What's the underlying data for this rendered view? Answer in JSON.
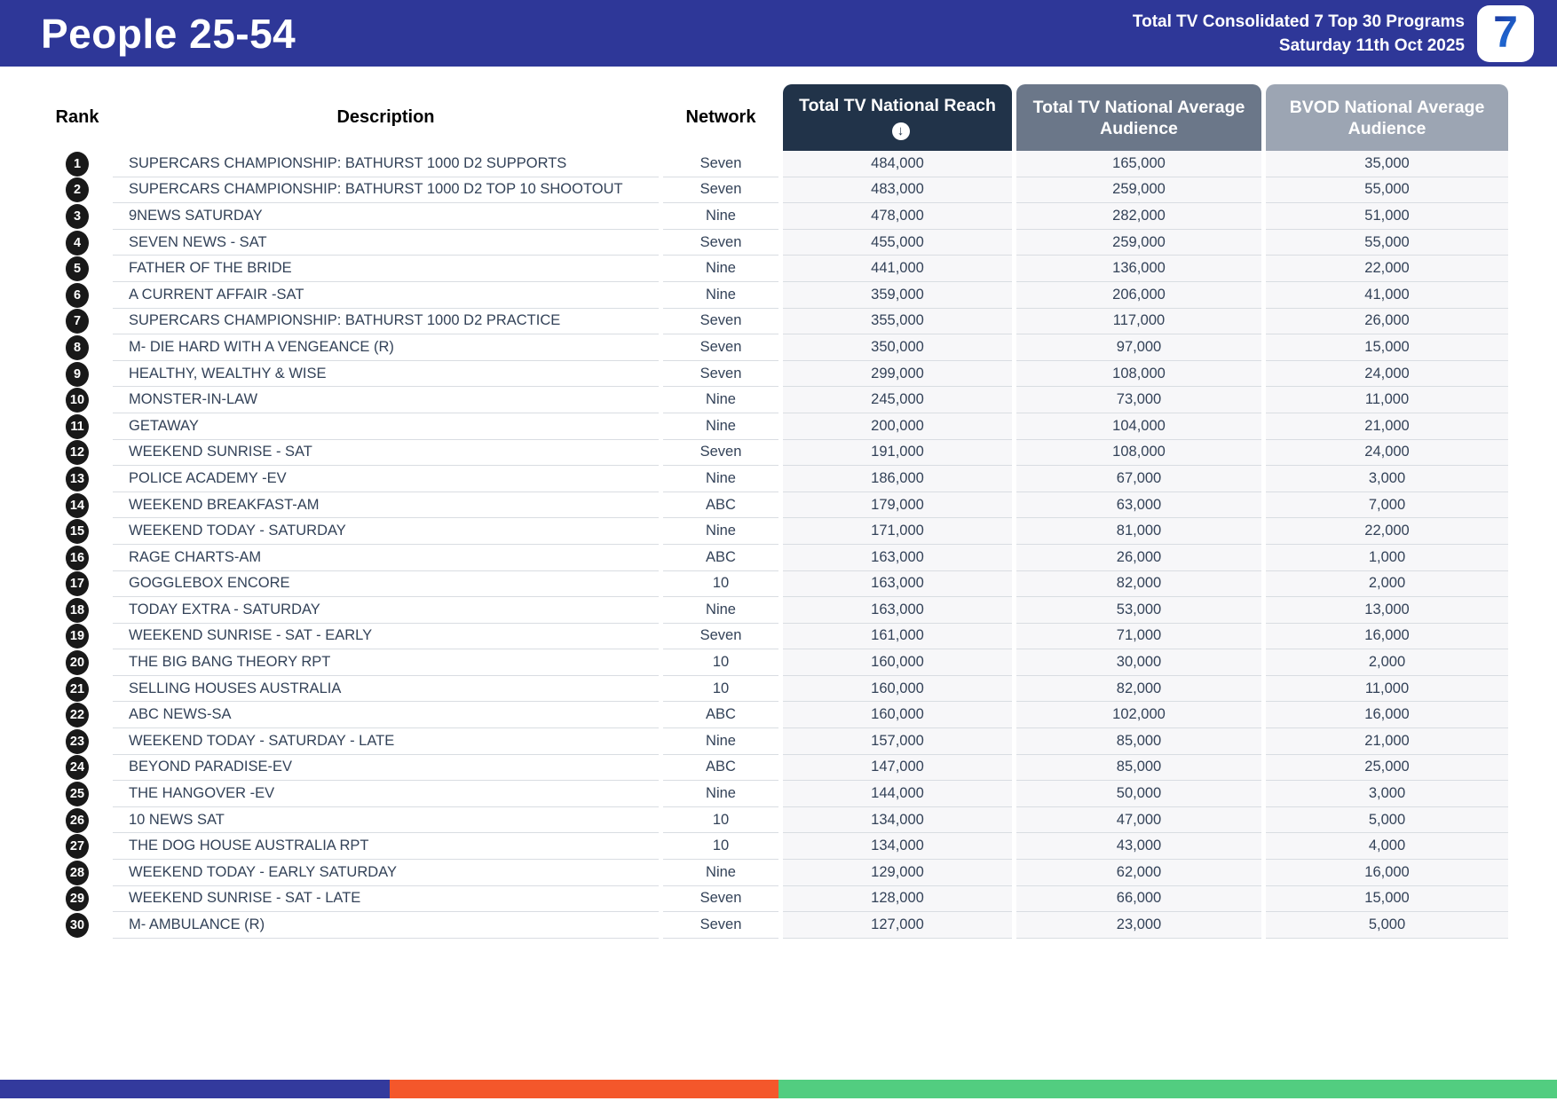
{
  "banner": {
    "title": "People 25-54",
    "subtitle_line1": "Total TV Consolidated 7 Top 30 Programs",
    "subtitle_line2": "Saturday 11th Oct 2025",
    "logo_text": "7",
    "bg_color": "#2e3798"
  },
  "table": {
    "columns": {
      "rank": "Rank",
      "description": "Description",
      "network": "Network",
      "reach": "Total TV National Reach",
      "avg": "Total TV National Average Audience",
      "bvod": "BVOD National Average Audience"
    },
    "sort_icon": "↓",
    "header_colors": {
      "reach": "#213349",
      "avg": "#6b7789",
      "bvod": "#9ca5b3"
    },
    "rows": [
      {
        "rank": "1",
        "description": "SUPERCARS CHAMPIONSHIP: BATHURST 1000 D2 SUPPORTS",
        "network": "Seven",
        "reach": "484,000",
        "avg": "165,000",
        "bvod": "35,000"
      },
      {
        "rank": "2",
        "description": "SUPERCARS CHAMPIONSHIP: BATHURST 1000 D2 TOP 10 SHOOTOUT",
        "network": "Seven",
        "reach": "483,000",
        "avg": "259,000",
        "bvod": "55,000"
      },
      {
        "rank": "3",
        "description": "9NEWS SATURDAY",
        "network": "Nine",
        "reach": "478,000",
        "avg": "282,000",
        "bvod": "51,000"
      },
      {
        "rank": "4",
        "description": "SEVEN NEWS - SAT",
        "network": "Seven",
        "reach": "455,000",
        "avg": "259,000",
        "bvod": "55,000"
      },
      {
        "rank": "5",
        "description": "FATHER OF THE BRIDE",
        "network": "Nine",
        "reach": "441,000",
        "avg": "136,000",
        "bvod": "22,000"
      },
      {
        "rank": "6",
        "description": "A CURRENT AFFAIR -SAT",
        "network": "Nine",
        "reach": "359,000",
        "avg": "206,000",
        "bvod": "41,000"
      },
      {
        "rank": "7",
        "description": "SUPERCARS CHAMPIONSHIP: BATHURST 1000 D2 PRACTICE",
        "network": "Seven",
        "reach": "355,000",
        "avg": "117,000",
        "bvod": "26,000"
      },
      {
        "rank": "8",
        "description": "M- DIE HARD WITH A VENGEANCE (R)",
        "network": "Seven",
        "reach": "350,000",
        "avg": "97,000",
        "bvod": "15,000"
      },
      {
        "rank": "9",
        "description": "HEALTHY, WEALTHY & WISE",
        "network": "Seven",
        "reach": "299,000",
        "avg": "108,000",
        "bvod": "24,000"
      },
      {
        "rank": "10",
        "description": "MONSTER-IN-LAW",
        "network": "Nine",
        "reach": "245,000",
        "avg": "73,000",
        "bvod": "11,000"
      },
      {
        "rank": "11",
        "description": "GETAWAY",
        "network": "Nine",
        "reach": "200,000",
        "avg": "104,000",
        "bvod": "21,000"
      },
      {
        "rank": "12",
        "description": "WEEKEND SUNRISE - SAT",
        "network": "Seven",
        "reach": "191,000",
        "avg": "108,000",
        "bvod": "24,000"
      },
      {
        "rank": "13",
        "description": "POLICE ACADEMY -EV",
        "network": "Nine",
        "reach": "186,000",
        "avg": "67,000",
        "bvod": "3,000"
      },
      {
        "rank": "14",
        "description": "WEEKEND BREAKFAST-AM",
        "network": "ABC",
        "reach": "179,000",
        "avg": "63,000",
        "bvod": "7,000"
      },
      {
        "rank": "15",
        "description": "WEEKEND TODAY - SATURDAY",
        "network": "Nine",
        "reach": "171,000",
        "avg": "81,000",
        "bvod": "22,000"
      },
      {
        "rank": "16",
        "description": "RAGE CHARTS-AM",
        "network": "ABC",
        "reach": "163,000",
        "avg": "26,000",
        "bvod": "1,000"
      },
      {
        "rank": "17",
        "description": "GOGGLEBOX ENCORE",
        "network": "10",
        "reach": "163,000",
        "avg": "82,000",
        "bvod": "2,000"
      },
      {
        "rank": "18",
        "description": "TODAY EXTRA - SATURDAY",
        "network": "Nine",
        "reach": "163,000",
        "avg": "53,000",
        "bvod": "13,000"
      },
      {
        "rank": "19",
        "description": "WEEKEND SUNRISE - SAT - EARLY",
        "network": "Seven",
        "reach": "161,000",
        "avg": "71,000",
        "bvod": "16,000"
      },
      {
        "rank": "20",
        "description": "THE BIG BANG THEORY RPT",
        "network": "10",
        "reach": "160,000",
        "avg": "30,000",
        "bvod": "2,000"
      },
      {
        "rank": "21",
        "description": "SELLING HOUSES AUSTRALIA",
        "network": "10",
        "reach": "160,000",
        "avg": "82,000",
        "bvod": "11,000"
      },
      {
        "rank": "22",
        "description": "ABC NEWS-SA",
        "network": "ABC",
        "reach": "160,000",
        "avg": "102,000",
        "bvod": "16,000"
      },
      {
        "rank": "23",
        "description": "WEEKEND TODAY - SATURDAY - LATE",
        "network": "Nine",
        "reach": "157,000",
        "avg": "85,000",
        "bvod": "21,000"
      },
      {
        "rank": "24",
        "description": "BEYOND PARADISE-EV",
        "network": "ABC",
        "reach": "147,000",
        "avg": "85,000",
        "bvod": "25,000"
      },
      {
        "rank": "25",
        "description": "THE HANGOVER -EV",
        "network": "Nine",
        "reach": "144,000",
        "avg": "50,000",
        "bvod": "3,000"
      },
      {
        "rank": "26",
        "description": "10 NEWS SAT",
        "network": "10",
        "reach": "134,000",
        "avg": "47,000",
        "bvod": "5,000"
      },
      {
        "rank": "27",
        "description": "THE DOG HOUSE AUSTRALIA RPT",
        "network": "10",
        "reach": "134,000",
        "avg": "43,000",
        "bvod": "4,000"
      },
      {
        "rank": "28",
        "description": "WEEKEND TODAY - EARLY SATURDAY",
        "network": "Nine",
        "reach": "129,000",
        "avg": "62,000",
        "bvod": "16,000"
      },
      {
        "rank": "29",
        "description": "WEEKEND SUNRISE - SAT - LATE",
        "network": "Seven",
        "reach": "128,000",
        "avg": "66,000",
        "bvod": "15,000"
      },
      {
        "rank": "30",
        "description": "M- AMBULANCE (R)",
        "network": "Seven",
        "reach": "127,000",
        "avg": "23,000",
        "bvod": "5,000"
      }
    ]
  },
  "footer": {
    "segment_colors": [
      "#333a9d",
      "#f4572b",
      "#52cd80"
    ]
  }
}
